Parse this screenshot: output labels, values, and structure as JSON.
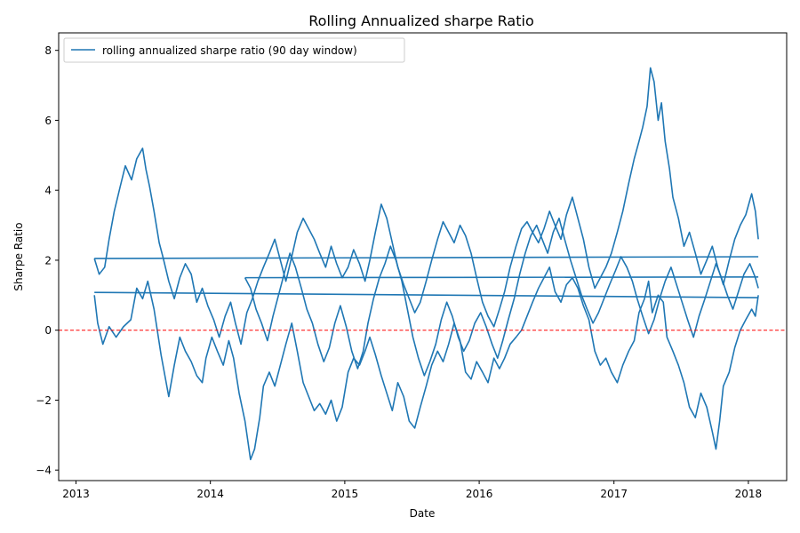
{
  "chart_data": {
    "type": "line",
    "title": "Rolling Annualized sharpe Ratio",
    "xlabel": "Date",
    "ylabel": "Sharpe Ratio",
    "x_axis_type": "date",
    "xlim": [
      "2012-11-15",
      "2018-04-15"
    ],
    "ylim": [
      -4.3,
      8.5
    ],
    "xticks": [
      "2013-01-01",
      "2014-01-01",
      "2015-01-01",
      "2016-01-01",
      "2017-01-01",
      "2018-01-01"
    ],
    "xtick_labels": [
      "2013",
      "2014",
      "2015",
      "2016",
      "2017",
      "2018"
    ],
    "yticks": [
      -4,
      -2,
      0,
      2,
      4,
      6,
      8
    ],
    "ytick_labels": [
      "−4",
      "−2",
      "0",
      "2",
      "4",
      "6",
      "8"
    ],
    "reference_line": {
      "y": 0,
      "color": "#ff0000",
      "style": "dashed"
    },
    "legend": {
      "position": "top-left"
    },
    "grid": false,
    "series": [
      {
        "name": "rolling annualized sharpe ratio (90 day window)",
        "color": "#1f77b4",
        "segments": [
          {
            "x": [
              "2013-02-20",
              "2013-03-01",
              "2013-03-15",
              "2013-04-01",
              "2013-04-20",
              "2013-05-10",
              "2013-05-30",
              "2013-06-15",
              "2013-07-01",
              "2013-07-15",
              "2013-08-01",
              "2013-08-20",
              "2013-09-10",
              "2013-09-25",
              "2013-10-10",
              "2013-10-25",
              "2013-11-10",
              "2013-11-25",
              "2013-12-10",
              "2013-12-20",
              "2014-01-05",
              "2014-01-20",
              "2014-02-05",
              "2014-02-20",
              "2014-03-05",
              "2014-03-20",
              "2014-04-05",
              "2014-04-20",
              "2014-05-01",
              "2014-05-15",
              "2014-05-25",
              "2014-06-10",
              "2014-06-25",
              "2014-07-10",
              "2014-07-25",
              "2014-08-10",
              "2014-08-25",
              "2014-09-10",
              "2014-09-25",
              "2014-10-10",
              "2014-10-25",
              "2014-11-10",
              "2014-11-25",
              "2014-12-10",
              "2014-12-25",
              "2015-01-10",
              "2015-01-25",
              "2015-02-10",
              "2015-02-25",
              "2015-03-10",
              "2015-03-25",
              "2015-04-10",
              "2015-04-25",
              "2015-05-10",
              "2015-05-25",
              "2015-06-10",
              "2015-06-25",
              "2015-07-10",
              "2015-07-25",
              "2015-08-10",
              "2015-08-25",
              "2015-09-10",
              "2015-09-25",
              "2015-10-10",
              "2015-10-25",
              "2015-11-10",
              "2015-11-25",
              "2015-12-10",
              "2015-12-25",
              "2016-01-10",
              "2016-01-25",
              "2016-02-10",
              "2016-02-25",
              "2016-03-10",
              "2016-03-25",
              "2016-04-10",
              "2016-04-25",
              "2016-05-10",
              "2016-05-25",
              "2016-06-10",
              "2016-06-25",
              "2016-07-10",
              "2016-07-25",
              "2016-08-10",
              "2016-08-25",
              "2016-09-10",
              "2016-09-25",
              "2016-10-10",
              "2016-10-25",
              "2016-11-10",
              "2016-11-25",
              "2016-12-10",
              "2016-12-25",
              "2017-01-10",
              "2017-01-25",
              "2017-02-10",
              "2017-02-25",
              "2017-03-10",
              "2017-03-25",
              "2017-04-05",
              "2017-04-15",
              "2017-05-01",
              "2017-05-15",
              "2017-05-25",
              "2017-06-10",
              "2017-06-25",
              "2017-07-10",
              "2017-07-25",
              "2017-08-10",
              "2017-08-25",
              "2017-09-10",
              "2017-09-25",
              "2017-10-05",
              "2017-10-15",
              "2017-10-25",
              "2017-11-10",
              "2017-11-25",
              "2017-12-10",
              "2017-12-25",
              "2018-01-10",
              "2018-01-20",
              "2018-01-28"
            ],
            "y": [
              1.0,
              0.2,
              -0.4,
              0.1,
              -0.2,
              0.1,
              0.3,
              1.2,
              0.9,
              1.4,
              0.6,
              -0.7,
              -1.9,
              -1.0,
              -0.2,
              -0.6,
              -0.9,
              -1.3,
              -1.5,
              -0.8,
              -0.2,
              -0.6,
              -1.0,
              -0.3,
              -0.8,
              -1.8,
              -2.6,
              -3.7,
              -3.4,
              -2.5,
              -1.6,
              -1.2,
              -1.6,
              -1.0,
              -0.4,
              0.2,
              -0.6,
              -1.5,
              -1.9,
              -2.3,
              -2.1,
              -2.4,
              -2.0,
              -2.6,
              -2.2,
              -1.2,
              -0.8,
              -1.0,
              -0.6,
              -0.2,
              -0.7,
              -1.3,
              -1.8,
              -2.3,
              -1.5,
              -1.9,
              -2.6,
              -2.8,
              -2.2,
              -1.6,
              -1.0,
              -0.6,
              -0.9,
              -0.4,
              0.2,
              -0.3,
              -1.2,
              -1.4,
              -0.9,
              -1.2,
              -1.5,
              -0.8,
              -1.1,
              -0.8,
              -0.4,
              -0.2,
              0.0,
              0.4,
              0.8,
              1.2,
              1.5,
              1.8,
              1.1,
              0.8,
              1.3,
              1.5,
              1.2,
              0.7,
              0.3,
              -0.6,
              -1.0,
              -0.8,
              -1.2,
              -1.5,
              -1.0,
              -0.6,
              -0.3,
              0.5,
              0.9,
              1.4,
              0.5,
              1.0,
              0.8,
              -0.2,
              -0.6,
              -1.0,
              -1.5,
              -2.2,
              -2.5,
              -1.8,
              -2.2,
              -2.9,
              -3.4,
              -2.6,
              -1.6,
              -1.2,
              -0.5,
              0.0,
              0.3,
              0.6,
              0.4,
              1.0
            ]
          },
          {
            "x": [
              "2013-02-20",
              "2018-01-28"
            ],
            "y": [
              1.08,
              0.93
            ]
          },
          {
            "x": [
              "2013-02-20",
              "2013-03-05",
              "2013-03-20",
              "2013-04-01",
              "2013-04-15",
              "2013-05-01",
              "2013-05-15",
              "2013-06-01",
              "2013-06-15",
              "2013-07-01",
              "2013-07-10",
              "2013-07-20",
              "2013-08-01",
              "2013-08-15",
              "2013-08-25",
              "2013-09-10",
              "2013-09-25",
              "2013-10-10",
              "2013-10-25",
              "2013-11-10",
              "2013-11-25",
              "2013-12-10",
              "2013-12-25",
              "2014-01-10",
              "2014-01-25",
              "2014-02-10",
              "2014-02-25",
              "2014-03-10",
              "2014-03-25",
              "2014-04-10",
              "2014-04-25",
              "2014-05-10",
              "2014-05-25",
              "2014-06-10",
              "2014-06-25",
              "2014-07-10",
              "2014-07-25",
              "2014-08-10",
              "2014-08-25",
              "2014-09-10",
              "2014-09-25",
              "2014-10-10",
              "2014-10-25",
              "2014-11-10",
              "2014-11-25",
              "2014-12-10",
              "2014-12-25",
              "2015-01-10",
              "2015-01-25",
              "2015-02-10",
              "2015-02-25",
              "2015-03-10",
              "2015-03-25",
              "2015-04-10",
              "2015-04-25",
              "2015-05-10",
              "2015-05-25",
              "2015-06-10",
              "2015-06-25",
              "2015-07-10",
              "2015-07-25",
              "2015-08-10",
              "2015-08-25",
              "2015-09-10",
              "2015-09-25",
              "2015-10-10",
              "2015-10-25",
              "2015-11-10",
              "2015-11-25",
              "2015-12-10",
              "2015-12-25",
              "2016-01-10",
              "2016-01-25",
              "2016-02-10",
              "2016-02-25",
              "2016-03-10",
              "2016-03-25",
              "2016-04-10",
              "2016-04-25",
              "2016-05-10",
              "2016-05-25",
              "2016-06-10",
              "2016-06-25",
              "2016-07-10",
              "2016-07-25",
              "2016-08-10",
              "2016-08-25",
              "2016-09-10",
              "2016-09-25",
              "2016-10-10",
              "2016-10-25",
              "2016-11-10",
              "2016-11-25",
              "2016-12-10",
              "2016-12-25",
              "2017-01-10",
              "2017-01-25",
              "2017-02-10",
              "2017-02-25",
              "2017-03-10",
              "2017-03-20",
              "2017-04-01",
              "2017-04-10",
              "2017-04-20",
              "2017-05-01",
              "2017-05-10",
              "2017-05-20",
              "2017-06-01",
              "2017-06-10",
              "2017-06-25",
              "2017-07-10",
              "2017-07-25",
              "2017-08-10",
              "2017-08-25",
              "2017-09-10",
              "2017-09-25",
              "2017-10-10",
              "2017-10-25",
              "2017-11-10",
              "2017-11-25",
              "2017-12-10",
              "2017-12-25",
              "2018-01-10",
              "2018-01-20",
              "2018-01-28"
            ],
            "y": [
              2.05,
              1.6,
              1.8,
              2.6,
              3.4,
              4.1,
              4.7,
              4.3,
              4.9,
              5.2,
              4.6,
              4.1,
              3.4,
              2.5,
              2.1,
              1.4,
              0.9,
              1.5,
              1.9,
              1.6,
              0.8,
              1.2,
              0.7,
              0.3,
              -0.2,
              0.4,
              0.8,
              0.2,
              -0.4,
              0.5,
              0.9,
              1.4,
              1.8,
              2.2,
              2.6,
              2.0,
              1.4,
              2.1,
              2.8,
              3.2,
              2.9,
              2.6,
              2.2,
              1.8,
              2.4,
              1.9,
              1.5,
              1.8,
              2.3,
              1.9,
              1.4,
              2.0,
              2.8,
              3.6,
              3.2,
              2.5,
              1.8,
              1.3,
              0.9,
              0.5,
              0.8,
              1.4,
              2.0,
              2.6,
              3.1,
              2.8,
              2.5,
              3.0,
              2.7,
              2.2,
              1.5,
              0.8,
              0.4,
              0.1,
              0.6,
              1.1,
              1.8,
              2.4,
              2.9,
              3.1,
              2.8,
              2.5,
              2.9,
              3.4,
              3.0,
              2.6,
              3.3,
              3.8,
              3.2,
              2.6,
              1.8,
              1.2,
              1.5,
              1.8,
              2.2,
              2.8,
              3.4,
              4.2,
              4.9,
              5.4,
              5.8,
              6.4,
              7.5,
              7.1,
              6.0,
              6.5,
              5.4,
              4.6,
              3.8,
              3.2,
              2.4,
              2.8,
              2.2,
              1.6,
              2.0,
              2.4,
              1.8,
              1.3,
              2.0,
              2.6,
              3.0,
              3.3,
              3.9,
              3.4,
              2.6
            ]
          },
          {
            "x": [
              "2013-02-20",
              "2018-01-28"
            ],
            "y": [
              2.05,
              2.1
            ]
          },
          {
            "x": [
              "2014-04-05",
              "2014-04-20",
              "2014-05-05",
              "2014-05-20",
              "2014-06-05",
              "2014-06-20",
              "2014-07-05",
              "2014-07-20",
              "2014-08-05",
              "2014-08-20",
              "2014-09-05",
              "2014-09-20",
              "2014-10-05",
              "2014-10-20",
              "2014-11-05",
              "2014-11-20",
              "2014-12-05",
              "2014-12-20",
              "2015-01-05",
              "2015-01-20",
              "2015-02-05",
              "2015-02-20",
              "2015-03-05",
              "2015-03-20",
              "2015-04-05",
              "2015-04-20",
              "2015-05-05",
              "2015-05-20",
              "2015-06-05",
              "2015-06-20",
              "2015-07-05",
              "2015-07-20",
              "2015-08-05",
              "2015-08-20",
              "2015-09-05",
              "2015-09-20",
              "2015-10-05",
              "2015-10-20",
              "2015-11-05",
              "2015-11-20",
              "2015-12-05",
              "2015-12-20",
              "2016-01-05",
              "2016-01-20",
              "2016-02-05",
              "2016-02-20",
              "2016-03-05",
              "2016-03-20",
              "2016-04-05",
              "2016-04-20",
              "2016-05-05",
              "2016-05-20",
              "2016-06-05",
              "2016-06-20",
              "2016-07-05",
              "2016-07-20",
              "2016-08-05",
              "2016-08-20",
              "2016-09-05",
              "2016-09-20",
              "2016-10-05",
              "2016-10-20",
              "2016-11-05",
              "2016-11-20",
              "2016-12-05",
              "2016-12-20",
              "2017-01-05",
              "2017-01-20",
              "2017-02-05",
              "2017-02-20",
              "2017-03-05",
              "2017-03-20",
              "2017-04-05",
              "2017-04-20",
              "2017-05-05",
              "2017-05-20",
              "2017-06-05",
              "2017-06-20",
              "2017-07-05",
              "2017-07-20",
              "2017-08-05",
              "2017-08-20",
              "2017-09-05",
              "2017-09-20",
              "2017-10-05",
              "2017-10-20",
              "2017-11-05",
              "2017-11-20",
              "2017-12-05",
              "2017-12-20",
              "2018-01-05",
              "2018-01-20",
              "2018-01-28"
            ],
            "y": [
              1.5,
              1.2,
              0.6,
              0.2,
              -0.3,
              0.4,
              1.0,
              1.6,
              2.2,
              1.8,
              1.2,
              0.6,
              0.2,
              -0.4,
              -0.9,
              -0.5,
              0.2,
              0.7,
              0.1,
              -0.6,
              -1.1,
              -0.6,
              0.2,
              0.9,
              1.5,
              1.9,
              2.4,
              2.0,
              1.4,
              0.6,
              -0.2,
              -0.8,
              -1.3,
              -0.9,
              -0.4,
              0.3,
              0.8,
              0.4,
              -0.2,
              -0.6,
              -0.3,
              0.2,
              0.5,
              0.1,
              -0.4,
              -0.8,
              -0.3,
              0.3,
              0.9,
              1.6,
              2.2,
              2.7,
              3.0,
              2.6,
              2.2,
              2.8,
              3.2,
              2.6,
              2.0,
              1.5,
              1.0,
              0.6,
              0.2,
              0.5,
              0.9,
              1.3,
              1.7,
              2.1,
              1.8,
              1.4,
              0.9,
              0.4,
              -0.1,
              0.3,
              0.9,
              1.4,
              1.8,
              1.3,
              0.8,
              0.3,
              -0.2,
              0.4,
              0.9,
              1.4,
              1.9,
              1.5,
              1.0,
              0.6,
              1.1,
              1.6,
              1.9,
              1.5,
              1.2
            ]
          },
          {
            "x": [
              "2014-04-05",
              "2018-01-28"
            ],
            "y": [
              1.5,
              1.52
            ]
          }
        ]
      }
    ]
  }
}
